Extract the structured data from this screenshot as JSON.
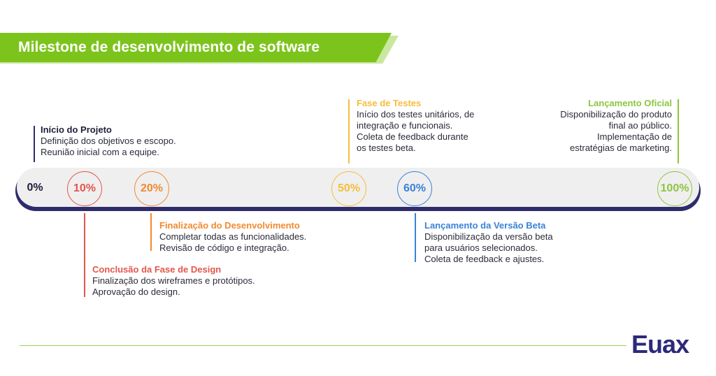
{
  "title": "Milestone de desenvolvimento de software",
  "brand": {
    "logo_text": "Euax",
    "logo_color": "#2d2a7a"
  },
  "colors": {
    "green": "#7cc41c",
    "navy": "#2e2c6b",
    "red": "#e2574c",
    "orange": "#f2892f",
    "yellow": "#f6bd3b",
    "blue": "#3a82d8",
    "lime": "#8dc63f"
  },
  "milestones": [
    {
      "percent": "0%",
      "title": "Início do Projeto",
      "lines": [
        "Definição dos objetivos e escopo.",
        "Reunião inicial com a equipe."
      ]
    },
    {
      "percent": "10%",
      "title": "Conclusão da Fase de Design",
      "lines": [
        "Finalização dos wireframes e protótipos.",
        "Aprovação do design."
      ]
    },
    {
      "percent": "20%",
      "title": "Finalização do Desenvolvimento",
      "lines": [
        "Completar todas as funcionalidades.",
        "Revisão de código e integração."
      ]
    },
    {
      "percent": "50%",
      "title": "Fase de Testes",
      "lines": [
        "Início dos testes unitários, de",
        "integração e funcionais.",
        "Coleta de feedback durante",
        "os testes beta."
      ]
    },
    {
      "percent": "60%",
      "title": "Lançamento da Versão Beta",
      "lines": [
        "Disponibilização da versão beta",
        "para usuários selecionados.",
        "Coleta de feedback e ajustes."
      ]
    },
    {
      "percent": "100%",
      "title": "Lançamento Oficial",
      "lines": [
        "Disponibilização do produto",
        "final ao público.",
        "Implementação de",
        "estratégias de marketing."
      ]
    }
  ]
}
